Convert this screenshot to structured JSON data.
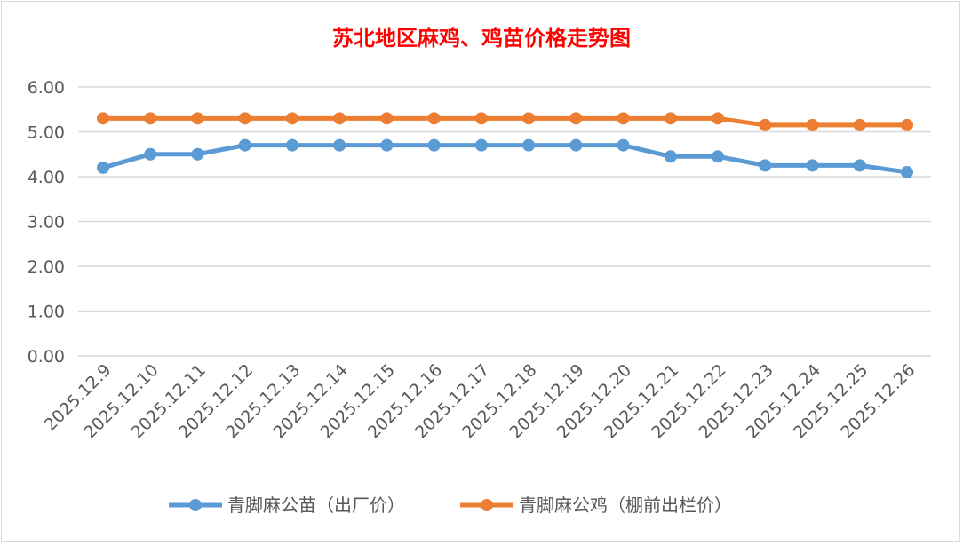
{
  "chart_data": {
    "type": "line",
    "title": "苏北地区麻鸡、鸡苗价格走势图",
    "xlabel": "",
    "ylabel": "",
    "ylim": [
      0,
      6
    ],
    "yticks": [
      "0.00",
      "1.00",
      "2.00",
      "3.00",
      "4.00",
      "5.00",
      "6.00"
    ],
    "grid": true,
    "legend_position": "bottom",
    "categories": [
      "2025.12.9",
      "2025.12.10",
      "2025.12.11",
      "2025.12.12",
      "2025.12.13",
      "2025.12.14",
      "2025.12.15",
      "2025.12.16",
      "2025.12.17",
      "2025.12.18",
      "2025.12.19",
      "2025.12.20",
      "2025.12.21",
      "2025.12.22",
      "2025.12.23",
      "2025.12.24",
      "2025.12.25",
      "2025.12.26"
    ],
    "series": [
      {
        "name": "青脚麻公苗（出厂价）",
        "color": "#5b9bd5",
        "values": [
          4.2,
          4.5,
          4.5,
          4.7,
          4.7,
          4.7,
          4.7,
          4.7,
          4.7,
          4.7,
          4.7,
          4.7,
          4.45,
          4.45,
          4.25,
          4.25,
          4.25,
          4.1
        ]
      },
      {
        "name": "青脚麻公鸡（棚前出栏价）",
        "color": "#ed7d31",
        "values": [
          5.3,
          5.3,
          5.3,
          5.3,
          5.3,
          5.3,
          5.3,
          5.3,
          5.3,
          5.3,
          5.3,
          5.3,
          5.3,
          5.3,
          5.15,
          5.15,
          5.15,
          5.15
        ]
      }
    ]
  }
}
